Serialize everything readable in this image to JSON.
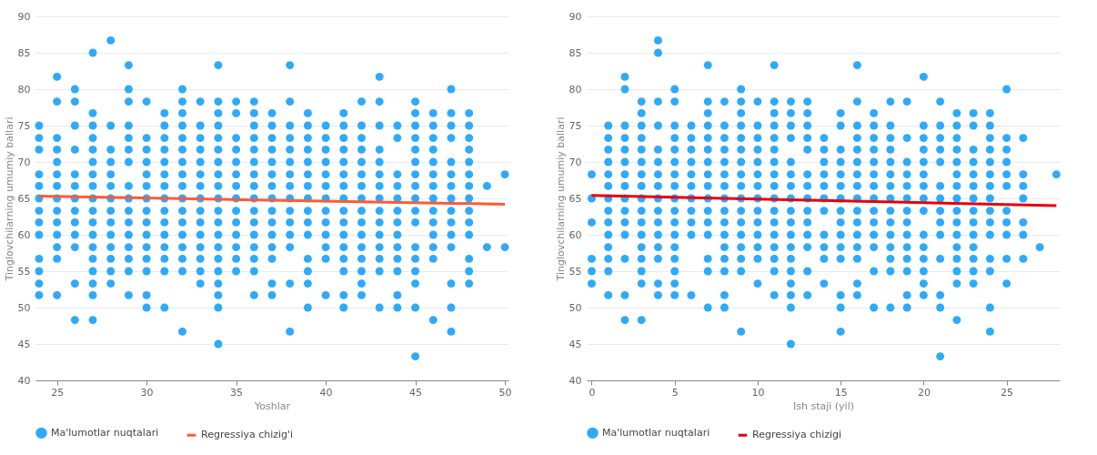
{
  "chart_data": [
    {
      "type": "scatter",
      "xlabel": "Yoshlar",
      "ylabel": "Tinglovchilarning umumiy ballari",
      "xlim": [
        23.8,
        50.2
      ],
      "ylim": [
        40,
        90
      ],
      "xticks": [
        25,
        30,
        35,
        40,
        45,
        50
      ],
      "yticks": [
        40,
        45,
        50,
        55,
        60,
        65,
        70,
        75,
        80,
        85,
        90
      ],
      "grid": "y",
      "legend": "bottom",
      "series": [
        {
          "name": "Ma'lumotlar nuqtalari",
          "color": "#2eaaf9",
          "type": "scatter",
          "marker": "circle",
          "x": [
            24,
            24,
            24,
            24,
            24,
            24,
            24,
            24,
            24,
            24,
            24,
            24,
            24,
            25,
            25,
            25,
            25,
            25,
            25,
            25,
            25,
            25,
            25,
            25,
            25,
            25,
            25,
            26,
            26,
            26,
            26,
            26,
            26,
            26,
            26,
            26,
            26,
            26,
            26,
            26,
            27,
            27,
            27,
            27,
            27,
            27,
            27,
            27,
            27,
            27,
            27,
            27,
            27,
            27,
            27,
            27,
            27,
            27,
            28,
            28,
            28,
            28,
            28,
            28,
            28,
            28,
            28,
            28,
            28,
            28,
            28,
            28,
            29,
            29,
            29,
            29,
            29,
            29,
            29,
            29,
            29,
            29,
            29,
            29,
            29,
            29,
            29,
            29,
            30,
            30,
            30,
            30,
            30,
            30,
            30,
            30,
            30,
            30,
            30,
            30,
            30,
            30,
            30,
            31,
            31,
            31,
            31,
            31,
            31,
            31,
            31,
            31,
            31,
            31,
            31,
            31,
            31,
            31,
            32,
            32,
            32,
            32,
            32,
            32,
            32,
            32,
            32,
            32,
            32,
            32,
            32,
            32,
            32,
            32,
            32,
            33,
            33,
            33,
            33,
            33,
            33,
            33,
            33,
            33,
            33,
            33,
            33,
            33,
            33,
            33,
            34,
            34,
            34,
            34,
            34,
            34,
            34,
            34,
            34,
            34,
            34,
            34,
            34,
            34,
            34,
            34,
            34,
            34,
            34,
            34,
            35,
            35,
            35,
            35,
            35,
            35,
            35,
            35,
            35,
            35,
            35,
            35,
            35,
            35,
            36,
            36,
            36,
            36,
            36,
            36,
            36,
            36,
            36,
            36,
            36,
            36,
            36,
            36,
            36,
            36,
            37,
            37,
            37,
            37,
            37,
            37,
            37,
            37,
            37,
            37,
            37,
            37,
            37,
            37,
            37,
            38,
            38,
            38,
            38,
            38,
            38,
            38,
            38,
            38,
            38,
            38,
            38,
            38,
            38,
            38,
            39,
            39,
            39,
            39,
            39,
            39,
            39,
            39,
            39,
            39,
            39,
            39,
            39,
            39,
            39,
            40,
            40,
            40,
            40,
            40,
            40,
            40,
            40,
            40,
            40,
            40,
            40,
            40,
            41,
            41,
            41,
            41,
            41,
            41,
            41,
            41,
            41,
            41,
            41,
            41,
            41,
            41,
            41,
            41,
            42,
            42,
            42,
            42,
            42,
            42,
            42,
            42,
            42,
            42,
            42,
            42,
            42,
            42,
            42,
            42,
            43,
            43,
            43,
            43,
            43,
            43,
            43,
            43,
            43,
            43,
            43,
            43,
            43,
            43,
            43,
            44,
            44,
            44,
            44,
            44,
            44,
            44,
            44,
            44,
            44,
            44,
            44,
            44,
            45,
            45,
            45,
            45,
            45,
            45,
            45,
            45,
            45,
            45,
            45,
            45,
            45,
            45,
            45,
            45,
            45,
            46,
            46,
            46,
            46,
            46,
            46,
            46,
            46,
            46,
            46,
            46,
            46,
            46,
            46,
            47,
            47,
            47,
            47,
            47,
            47,
            47,
            47,
            47,
            47,
            47,
            47,
            47,
            47,
            47,
            48,
            48,
            48,
            48,
            48,
            48,
            48,
            48,
            48,
            48,
            48,
            48,
            48,
            48,
            49,
            49,
            50,
            50
          ],
          "values": [
            51.7,
            53.3,
            55,
            56.7,
            60,
            61.7,
            63.3,
            65,
            66.7,
            68.3,
            71.7,
            73.3,
            75,
            51.7,
            56.7,
            58.3,
            60,
            61.7,
            63.3,
            65,
            66.7,
            68.3,
            70,
            71.7,
            73.3,
            78.3,
            81.7,
            48.3,
            53.3,
            58.3,
            60,
            61.7,
            63.3,
            65,
            66.7,
            68.3,
            71.7,
            75,
            78.3,
            80,
            48.3,
            51.7,
            53.3,
            55,
            56.7,
            58.3,
            60,
            61.7,
            63.3,
            65,
            66.7,
            68.3,
            70,
            71.7,
            73.3,
            75,
            76.7,
            85,
            53.3,
            55,
            56.7,
            58.3,
            60,
            61.7,
            63.3,
            65,
            66.7,
            68.3,
            70,
            71.7,
            75,
            86.7,
            51.7,
            55,
            56.7,
            58.3,
            60,
            61.7,
            63.3,
            65,
            66.7,
            70,
            71.7,
            73.3,
            75,
            78.3,
            80,
            83.3,
            50,
            51.7,
            55,
            56.7,
            58.3,
            60,
            61.7,
            63.3,
            65,
            66.7,
            68.3,
            70,
            71.7,
            73.3,
            78.3,
            50,
            55,
            56.7,
            58.3,
            60,
            61.7,
            63.3,
            65,
            66.7,
            68.3,
            70,
            71.7,
            73.3,
            75,
            76.7,
            46.7,
            55,
            56.7,
            58.3,
            60,
            61.7,
            63.3,
            65,
            66.7,
            68.3,
            70,
            71.7,
            73.3,
            75,
            76.7,
            78.3,
            80,
            53.3,
            55,
            56.7,
            58.3,
            60,
            61.7,
            63.3,
            65,
            66.7,
            68.3,
            70,
            71.7,
            73.3,
            75,
            78.3,
            45,
            50,
            51.7,
            53.3,
            55,
            56.7,
            58.3,
            60,
            61.7,
            63.3,
            65,
            66.7,
            68.3,
            70,
            71.7,
            73.3,
            75,
            76.7,
            78.3,
            83.3,
            55,
            56.7,
            58.3,
            60,
            61.7,
            63.3,
            65,
            66.7,
            68.3,
            70,
            71.7,
            73.3,
            76.7,
            78.3,
            51.7,
            55,
            56.7,
            58.3,
            60,
            61.7,
            63.3,
            65,
            66.7,
            68.3,
            70,
            71.7,
            73.3,
            75,
            76.7,
            78.3,
            51.7,
            53.3,
            56.7,
            58.3,
            60,
            61.7,
            63.3,
            65,
            66.7,
            68.3,
            70,
            71.7,
            73.3,
            75,
            76.7,
            46.7,
            53.3,
            58.3,
            60,
            61.7,
            63.3,
            65,
            66.7,
            68.3,
            70,
            71.7,
            73.3,
            75,
            78.3,
            83.3,
            50,
            53.3,
            55,
            56.7,
            60,
            61.7,
            63.3,
            65,
            66.7,
            68.3,
            70,
            71.7,
            73.3,
            75,
            76.7,
            51.7,
            56.7,
            58.3,
            60,
            61.7,
            63.3,
            65,
            66.7,
            68.3,
            70,
            71.7,
            73.3,
            75,
            50,
            51.7,
            55,
            56.7,
            58.3,
            60,
            61.7,
            63.3,
            65,
            66.7,
            68.3,
            70,
            71.7,
            73.3,
            75,
            76.7,
            51.7,
            53.3,
            55,
            56.7,
            58.3,
            60,
            61.7,
            63.3,
            65,
            66.7,
            68.3,
            70,
            71.7,
            73.3,
            75,
            78.3,
            50,
            55,
            56.7,
            58.3,
            60,
            61.7,
            63.3,
            65,
            66.7,
            68.3,
            70,
            71.7,
            75,
            78.3,
            81.7,
            50,
            51.7,
            55,
            56.7,
            58.3,
            60,
            61.7,
            63.3,
            65,
            66.7,
            68.3,
            73.3,
            75,
            43.3,
            50,
            53.3,
            55,
            56.7,
            58.3,
            61.7,
            63.3,
            65,
            66.7,
            68.3,
            70,
            71.7,
            73.3,
            75,
            76.7,
            78.3,
            48.3,
            56.7,
            58.3,
            60,
            61.7,
            63.3,
            65,
            66.7,
            68.3,
            70,
            71.7,
            73.3,
            75,
            76.7,
            46.7,
            50,
            53.3,
            58.3,
            60,
            61.7,
            63.3,
            65,
            66.7,
            68.3,
            70,
            73.3,
            75,
            76.7,
            80,
            53.3,
            55,
            56.7,
            60,
            61.7,
            63.3,
            65,
            66.7,
            68.3,
            70,
            71.7,
            73.3,
            75,
            76.7,
            58.3,
            66.7,
            58.3,
            68.3
          ]
        },
        {
          "name": "Regressiya chizig'i",
          "color": "#ff5a36",
          "type": "line",
          "marker": "none",
          "x": [
            24,
            50
          ],
          "values": [
            65.3,
            64.2
          ]
        }
      ]
    },
    {
      "type": "scatter",
      "xlabel": "Ish staji (yil)",
      "ylabel": "Tinglovchilarning umumiy ballari",
      "xlim": [
        -0.3,
        28.2
      ],
      "ylim": [
        40,
        90
      ],
      "xticks": [
        0,
        5,
        10,
        15,
        20,
        25
      ],
      "yticks": [
        40,
        45,
        50,
        55,
        60,
        65,
        70,
        75,
        80,
        85,
        90
      ],
      "grid": "y",
      "legend": "bottom",
      "series": [
        {
          "name": "Ma'lumotlar nuqtalari",
          "color": "#2eaaf9",
          "type": "scatter",
          "marker": "circle",
          "x": [
            0,
            0,
            0,
            0,
            0,
            0,
            1,
            1,
            1,
            1,
            1,
            1,
            1,
            1,
            1,
            1,
            1,
            1,
            1,
            1,
            2,
            2,
            2,
            2,
            2,
            2,
            2,
            2,
            2,
            2,
            2,
            2,
            2,
            2,
            2,
            3,
            3,
            3,
            3,
            3,
            3,
            3,
            3,
            3,
            3,
            3,
            3,
            3,
            3,
            3,
            3,
            3,
            4,
            4,
            4,
            4,
            4,
            4,
            4,
            4,
            4,
            4,
            4,
            4,
            4,
            4,
            4,
            4,
            5,
            5,
            5,
            5,
            5,
            5,
            5,
            5,
            5,
            5,
            5,
            5,
            5,
            5,
            5,
            5,
            5,
            6,
            6,
            6,
            6,
            6,
            6,
            6,
            6,
            6,
            6,
            6,
            7,
            7,
            7,
            7,
            7,
            7,
            7,
            7,
            7,
            7,
            7,
            7,
            7,
            7,
            7,
            7,
            8,
            8,
            8,
            8,
            8,
            8,
            8,
            8,
            8,
            8,
            8,
            8,
            8,
            8,
            8,
            8,
            9,
            9,
            9,
            9,
            9,
            9,
            9,
            9,
            9,
            9,
            9,
            9,
            9,
            9,
            9,
            9,
            9,
            10,
            10,
            10,
            10,
            10,
            10,
            10,
            10,
            10,
            10,
            10,
            10,
            10,
            10,
            11,
            11,
            11,
            11,
            11,
            11,
            11,
            11,
            11,
            11,
            11,
            11,
            11,
            11,
            11,
            11,
            11,
            12,
            12,
            12,
            12,
            12,
            12,
            12,
            12,
            12,
            12,
            12,
            12,
            12,
            12,
            12,
            12,
            12,
            12,
            13,
            13,
            13,
            13,
            13,
            13,
            13,
            13,
            13,
            13,
            13,
            13,
            13,
            13,
            14,
            14,
            14,
            14,
            14,
            14,
            14,
            14,
            14,
            14,
            14,
            15,
            15,
            15,
            15,
            15,
            15,
            15,
            15,
            15,
            15,
            15,
            15,
            15,
            15,
            15,
            16,
            16,
            16,
            16,
            16,
            16,
            16,
            16,
            16,
            16,
            16,
            16,
            16,
            16,
            16,
            16,
            17,
            17,
            17,
            17,
            17,
            17,
            17,
            17,
            17,
            17,
            17,
            17,
            17,
            17,
            18,
            18,
            18,
            18,
            18,
            18,
            18,
            18,
            18,
            18,
            18,
            18,
            18,
            18,
            18,
            19,
            19,
            19,
            19,
            19,
            19,
            19,
            19,
            19,
            19,
            19,
            19,
            19,
            19,
            20,
            20,
            20,
            20,
            20,
            20,
            20,
            20,
            20,
            20,
            20,
            20,
            20,
            20,
            20,
            21,
            21,
            21,
            21,
            21,
            21,
            21,
            21,
            21,
            21,
            21,
            21,
            21,
            21,
            22,
            22,
            22,
            22,
            22,
            22,
            22,
            22,
            22,
            22,
            22,
            22,
            22,
            22,
            22,
            22,
            23,
            23,
            23,
            23,
            23,
            23,
            23,
            23,
            23,
            23,
            23,
            23,
            23,
            23,
            24,
            24,
            24,
            24,
            24,
            24,
            24,
            24,
            24,
            24,
            24,
            24,
            24,
            24,
            24,
            25,
            25,
            25,
            25,
            25,
            25,
            25,
            25,
            25,
            25,
            25,
            26,
            26,
            26,
            26,
            26,
            26,
            26,
            27,
            28
          ],
          "values": [
            53.3,
            55,
            56.7,
            61.7,
            65,
            68.3,
            51.7,
            55,
            56.7,
            58.3,
            60,
            61.7,
            63.3,
            65,
            66.7,
            68.3,
            70,
            71.7,
            73.3,
            75,
            48.3,
            51.7,
            56.7,
            60,
            61.7,
            63.3,
            65,
            66.7,
            68.3,
            70,
            71.7,
            73.3,
            75,
            80,
            81.7,
            48.3,
            53.3,
            55,
            56.7,
            58.3,
            60,
            61.7,
            63.3,
            65,
            66.7,
            68.3,
            70,
            71.7,
            73.3,
            75,
            76.7,
            78.3,
            51.7,
            53.3,
            56.7,
            58.3,
            60,
            61.7,
            63.3,
            65,
            66.7,
            68.3,
            70,
            71.7,
            75,
            78.3,
            85,
            86.7,
            51.7,
            53.3,
            55,
            56.7,
            58.3,
            60,
            61.7,
            63.3,
            65,
            66.7,
            68.3,
            70,
            71.7,
            73.3,
            75,
            78.3,
            80,
            51.7,
            60,
            61.7,
            63.3,
            65,
            66.7,
            68.3,
            70,
            71.7,
            73.3,
            75,
            50,
            55,
            56.7,
            60,
            61.7,
            63.3,
            65,
            66.7,
            68.3,
            70,
            71.7,
            73.3,
            75,
            76.7,
            78.3,
            83.3,
            50,
            51.7,
            55,
            56.7,
            58.3,
            60,
            61.7,
            63.3,
            65,
            66.7,
            68.3,
            70,
            71.7,
            73.3,
            75,
            78.3,
            46.7,
            55,
            56.7,
            58.3,
            60,
            61.7,
            63.3,
            65,
            66.7,
            68.3,
            70,
            71.7,
            73.3,
            75,
            76.7,
            78.3,
            80,
            53.3,
            56.7,
            58.3,
            60,
            61.7,
            63.3,
            65,
            66.7,
            68.3,
            70,
            71.7,
            73.3,
            75,
            78.3,
            51.7,
            55,
            56.7,
            58.3,
            60,
            61.7,
            63.3,
            65,
            66.7,
            68.3,
            70,
            71.7,
            73.3,
            75,
            76.7,
            78.3,
            83.3,
            45,
            50,
            51.7,
            53.3,
            55,
            56.7,
            58.3,
            60,
            61.7,
            63.3,
            65,
            66.7,
            68.3,
            70,
            73.3,
            75,
            76.7,
            78.3,
            51.7,
            55,
            58.3,
            60,
            61.7,
            63.3,
            65,
            66.7,
            68.3,
            71.7,
            73.3,
            75,
            76.7,
            78.3,
            53.3,
            56.7,
            58.3,
            60,
            63.3,
            65,
            66.7,
            68.3,
            70,
            71.7,
            73.3,
            46.7,
            50,
            51.7,
            56.7,
            58.3,
            60,
            61.7,
            63.3,
            65,
            66.7,
            68.3,
            70,
            71.7,
            75,
            76.7,
            51.7,
            53.3,
            56.7,
            58.3,
            60,
            61.7,
            63.3,
            65,
            66.7,
            68.3,
            70,
            71.7,
            73.3,
            75,
            78.3,
            83.3,
            50,
            55,
            58.3,
            60,
            61.7,
            63.3,
            65,
            66.7,
            68.3,
            70,
            71.7,
            73.3,
            75,
            76.7,
            50,
            55,
            56.7,
            58.3,
            60,
            61.7,
            63.3,
            65,
            66.7,
            68.3,
            70,
            71.7,
            73.3,
            75,
            78.3,
            50,
            51.7,
            55,
            56.7,
            58.3,
            60,
            61.7,
            63.3,
            65,
            66.7,
            68.3,
            70,
            73.3,
            78.3,
            51.7,
            53.3,
            55,
            56.7,
            58.3,
            60,
            63.3,
            65,
            66.7,
            68.3,
            70,
            71.7,
            73.3,
            75,
            81.7,
            43.3,
            50,
            51.7,
            56.7,
            60,
            61.7,
            63.3,
            65,
            66.7,
            70,
            71.7,
            73.3,
            75,
            78.3,
            48.3,
            53.3,
            55,
            56.7,
            58.3,
            60,
            61.7,
            63.3,
            65,
            66.7,
            68.3,
            70,
            71.7,
            73.3,
            75,
            76.7,
            53.3,
            55,
            56.7,
            58.3,
            60,
            61.7,
            63.3,
            65,
            66.7,
            68.3,
            70,
            71.7,
            75,
            76.7,
            46.7,
            50,
            55,
            56.7,
            60,
            61.7,
            63.3,
            65,
            66.7,
            68.3,
            70,
            71.7,
            73.3,
            75,
            76.7,
            53.3,
            56.7,
            60,
            61.7,
            63.3,
            66.7,
            68.3,
            70,
            71.7,
            73.3,
            80,
            56.7,
            60,
            61.7,
            65,
            66.7,
            68.3,
            73.3,
            58.3,
            68.3
          ]
        },
        {
          "name": "Regressiya chizigi",
          "color": "#e8000b",
          "type": "line",
          "marker": "none",
          "x": [
            0,
            28
          ],
          "values": [
            65.4,
            64.0
          ]
        }
      ]
    }
  ]
}
